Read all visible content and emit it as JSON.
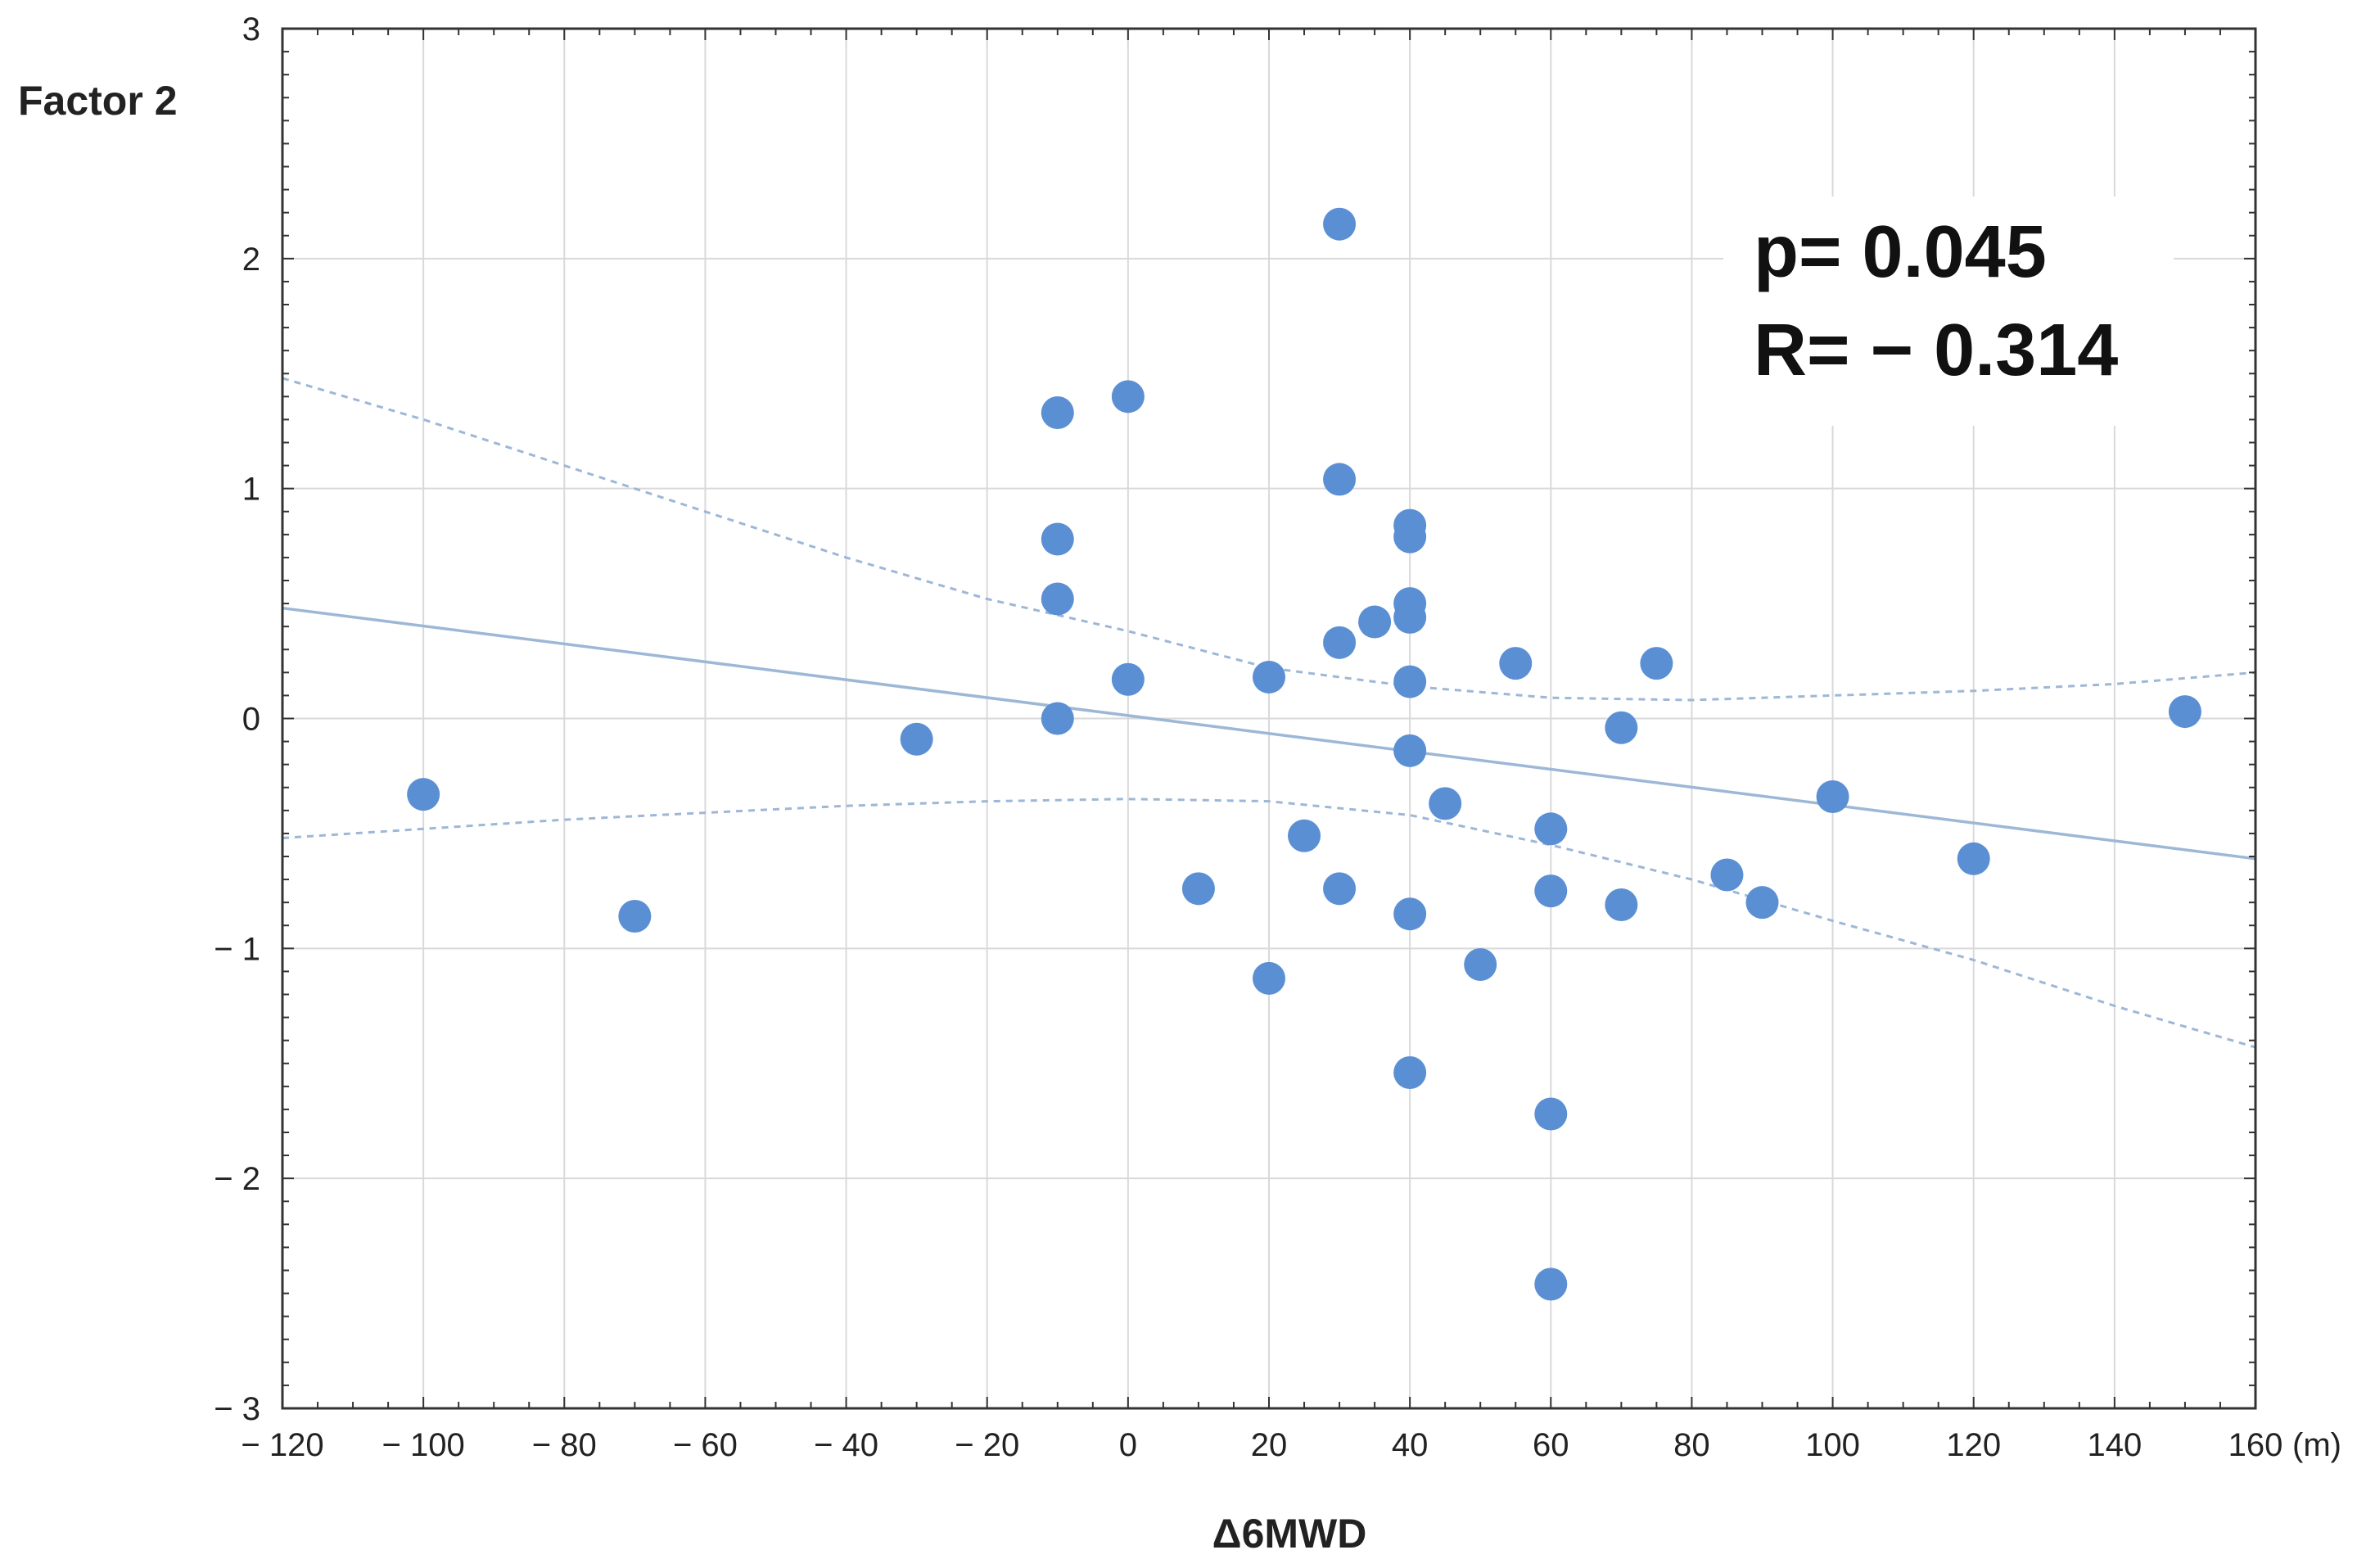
{
  "chart_data": {
    "type": "scatter",
    "title": "",
    "xlabel": "Δ6MWD",
    "xunit": "(m)",
    "ylabel": "Factor 2",
    "xlim": [
      -120,
      160
    ],
    "ylim": [
      -3,
      3
    ],
    "grid": true,
    "x_ticks": [
      -120,
      -100,
      -80,
      -60,
      -40,
      -20,
      0,
      20,
      40,
      60,
      80,
      100,
      120,
      140,
      160
    ],
    "x_tick_labels": [
      "− 120",
      "− 100",
      "− 80",
      "− 60",
      "− 40",
      "− 20",
      "0",
      "20",
      "40",
      "60",
      "80",
      "100",
      "120",
      "140",
      "160"
    ],
    "y_ticks": [
      3,
      2,
      1,
      0,
      -1,
      -2,
      -3
    ],
    "y_tick_labels": [
      "3",
      "2",
      "1",
      "0",
      "− 1",
      "− 2",
      "− 3"
    ],
    "annotations": {
      "p_value": "p= 0.045",
      "r_value": "R= − 0.314"
    },
    "points": [
      {
        "x": -100,
        "y": -0.33
      },
      {
        "x": -70,
        "y": -0.86
      },
      {
        "x": -30,
        "y": -0.09
      },
      {
        "x": -10,
        "y": 1.33
      },
      {
        "x": -10,
        "y": 0.78
      },
      {
        "x": -10,
        "y": 0.52
      },
      {
        "x": -10,
        "y": 0.0
      },
      {
        "x": 0,
        "y": 1.4
      },
      {
        "x": 0,
        "y": 0.17
      },
      {
        "x": 10,
        "y": -0.74
      },
      {
        "x": 20,
        "y": 0.18
      },
      {
        "x": 20,
        "y": -1.13
      },
      {
        "x": 25,
        "y": -0.51
      },
      {
        "x": 30,
        "y": 2.15
      },
      {
        "x": 30,
        "y": 1.04
      },
      {
        "x": 30,
        "y": 0.33
      },
      {
        "x": 30,
        "y": -0.74
      },
      {
        "x": 35,
        "y": 0.42
      },
      {
        "x": 40,
        "y": 0.84
      },
      {
        "x": 40,
        "y": 0.79
      },
      {
        "x": 40,
        "y": 0.5
      },
      {
        "x": 40,
        "y": 0.44
      },
      {
        "x": 40,
        "y": 0.16
      },
      {
        "x": 40,
        "y": -0.14
      },
      {
        "x": 40,
        "y": -0.85
      },
      {
        "x": 40,
        "y": -1.54
      },
      {
        "x": 45,
        "y": -0.37
      },
      {
        "x": 50,
        "y": -1.07
      },
      {
        "x": 55,
        "y": 0.24
      },
      {
        "x": 60,
        "y": -0.48
      },
      {
        "x": 60,
        "y": -0.75
      },
      {
        "x": 60,
        "y": -1.72
      },
      {
        "x": 60,
        "y": -2.46
      },
      {
        "x": 70,
        "y": -0.04
      },
      {
        "x": 70,
        "y": -0.81
      },
      {
        "x": 75,
        "y": 0.24
      },
      {
        "x": 85,
        "y": -0.68
      },
      {
        "x": 90,
        "y": -0.8
      },
      {
        "x": 100,
        "y": -0.34
      },
      {
        "x": 120,
        "y": -0.61
      },
      {
        "x": 150,
        "y": 0.03
      }
    ],
    "regression_line": {
      "x": [
        -120,
        160
      ],
      "y": [
        0.48,
        -0.61
      ]
    },
    "confidence_upper": {
      "x": [
        -120,
        -100,
        -80,
        -60,
        -40,
        -20,
        0,
        20,
        40,
        60,
        80,
        100,
        120,
        140,
        160
      ],
      "y": [
        1.48,
        1.3,
        1.1,
        0.9,
        0.7,
        0.52,
        0.38,
        0.22,
        0.14,
        0.09,
        0.08,
        0.1,
        0.12,
        0.15,
        0.2
      ]
    },
    "confidence_lower": {
      "x": [
        -120,
        -100,
        -80,
        -60,
        -40,
        -20,
        0,
        20,
        40,
        60,
        80,
        100,
        120,
        140,
        160
      ],
      "y": [
        -0.52,
        -0.48,
        -0.44,
        -0.41,
        -0.38,
        -0.36,
        -0.35,
        -0.36,
        -0.42,
        -0.55,
        -0.7,
        -0.88,
        -1.05,
        -1.25,
        -1.43
      ]
    },
    "colors": {
      "point": "#5b8fd4",
      "regression": "#9db7d6",
      "confidence": "#9db7d6",
      "grid": "#d9d9d9",
      "axis": "#333333"
    }
  }
}
